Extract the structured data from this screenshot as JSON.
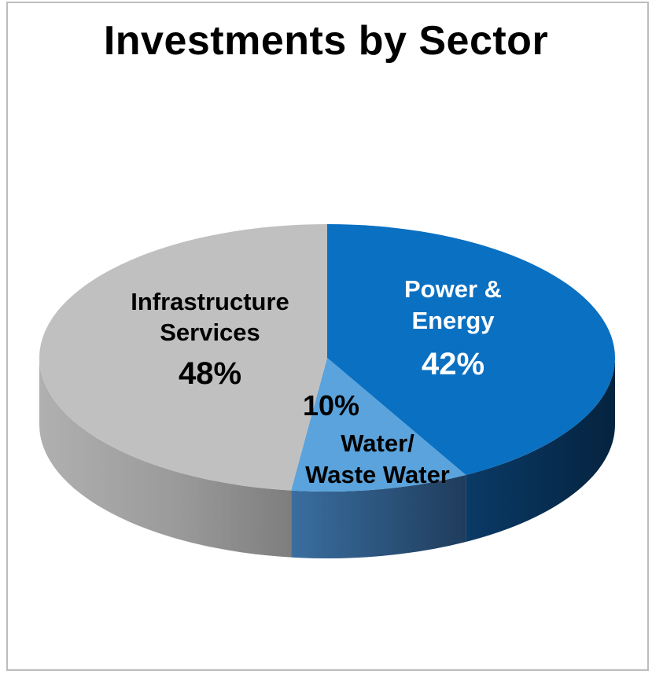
{
  "chart_data": {
    "type": "pie",
    "title": "Investments by Sector",
    "slices": [
      {
        "label_lines": [
          "Power &",
          "Energy"
        ],
        "value": 42,
        "value_text": "42%",
        "color": "#0a70c2",
        "side_color": "#062f55",
        "text_color": "#ffffff"
      },
      {
        "label_lines": [
          "Water/",
          "Waste Water"
        ],
        "value": 10,
        "value_text": "10%",
        "color": "#5aa3dc",
        "side_color": "#2a4f78",
        "text_color": "#000000"
      },
      {
        "label_lines": [
          "Infrastructure",
          "Services"
        ],
        "value": 48,
        "value_text": "48%",
        "color": "#c0c0c0",
        "side_color": "#8a8a8a",
        "text_color": "#000000"
      }
    ]
  }
}
